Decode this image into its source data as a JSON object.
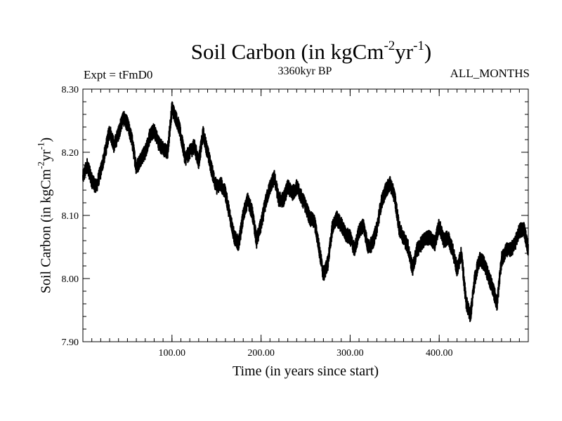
{
  "title": {
    "main": "Soil Carbon (in kgCm",
    "exp1": "-2",
    "mid": "yr",
    "exp2": "-1",
    "close": ")"
  },
  "experiment": "Expt = tFmD0",
  "subtitle": "3360kyr BP",
  "months": "ALL_MONTHS",
  "chart_data": {
    "type": "line",
    "title": "Soil Carbon (in kgCm-2yr-1)",
    "xlabel": "Time (in years since start)",
    "ylabel": {
      "main": "Soil Carbon (in kgCm",
      "exp1": "-2",
      "mid": "yr",
      "exp2": "-1",
      "close": ")"
    },
    "xlim": [
      0,
      500
    ],
    "ylim": [
      7.9,
      8.3
    ],
    "x_ticks": [
      100,
      200,
      300,
      400
    ],
    "x_tick_labels": [
      "100.00",
      "200.00",
      "300.00",
      "400.00"
    ],
    "y_ticks": [
      7.9,
      8.0,
      8.1,
      8.2,
      8.3
    ],
    "y_tick_labels": [
      "7.90",
      "8.00",
      "8.10",
      "8.20",
      "8.30"
    ],
    "grid": false,
    "series": [
      {
        "name": "Soil Carbon",
        "color": "#000000",
        "noise_amplitude": 0.012,
        "x": [
          0,
          5,
          10,
          15,
          20,
          25,
          30,
          35,
          40,
          45,
          50,
          55,
          60,
          65,
          70,
          75,
          80,
          85,
          90,
          95,
          100,
          103,
          108,
          115,
          120,
          125,
          130,
          135,
          140,
          145,
          150,
          155,
          160,
          165,
          170,
          175,
          180,
          185,
          190,
          195,
          200,
          205,
          210,
          215,
          220,
          225,
          230,
          235,
          240,
          245,
          250,
          255,
          260,
          265,
          270,
          275,
          280,
          285,
          290,
          295,
          300,
          305,
          310,
          315,
          320,
          325,
          330,
          335,
          340,
          345,
          350,
          355,
          360,
          365,
          370,
          375,
          380,
          385,
          390,
          395,
          400,
          405,
          410,
          415,
          420,
          425,
          430,
          435,
          440,
          445,
          450,
          455,
          460,
          465,
          470,
          475,
          480,
          485,
          490,
          495,
          500
        ],
        "y": [
          8.16,
          8.18,
          8.155,
          8.145,
          8.17,
          8.2,
          8.235,
          8.21,
          8.23,
          8.255,
          8.245,
          8.22,
          8.175,
          8.19,
          8.2,
          8.225,
          8.235,
          8.215,
          8.205,
          8.2,
          8.27,
          8.26,
          8.24,
          8.19,
          8.2,
          8.21,
          8.185,
          8.23,
          8.2,
          8.17,
          8.145,
          8.15,
          8.135,
          8.1,
          8.065,
          8.055,
          8.1,
          8.125,
          8.105,
          8.06,
          8.085,
          8.12,
          8.145,
          8.16,
          8.125,
          8.125,
          8.145,
          8.135,
          8.145,
          8.13,
          8.115,
          8.095,
          8.09,
          8.05,
          8.005,
          8.025,
          8.08,
          8.095,
          8.085,
          8.07,
          8.065,
          8.045,
          8.075,
          8.085,
          8.05,
          8.055,
          8.08,
          8.12,
          8.14,
          8.15,
          8.13,
          8.08,
          8.065,
          8.05,
          8.015,
          8.045,
          8.055,
          8.065,
          8.065,
          8.055,
          8.085,
          8.06,
          8.065,
          8.045,
          8.015,
          8.04,
          7.965,
          7.94,
          8.0,
          8.03,
          8.025,
          8.005,
          7.985,
          7.96,
          8.03,
          8.045,
          8.045,
          8.055,
          8.075,
          8.08,
          8.045
        ]
      }
    ]
  }
}
